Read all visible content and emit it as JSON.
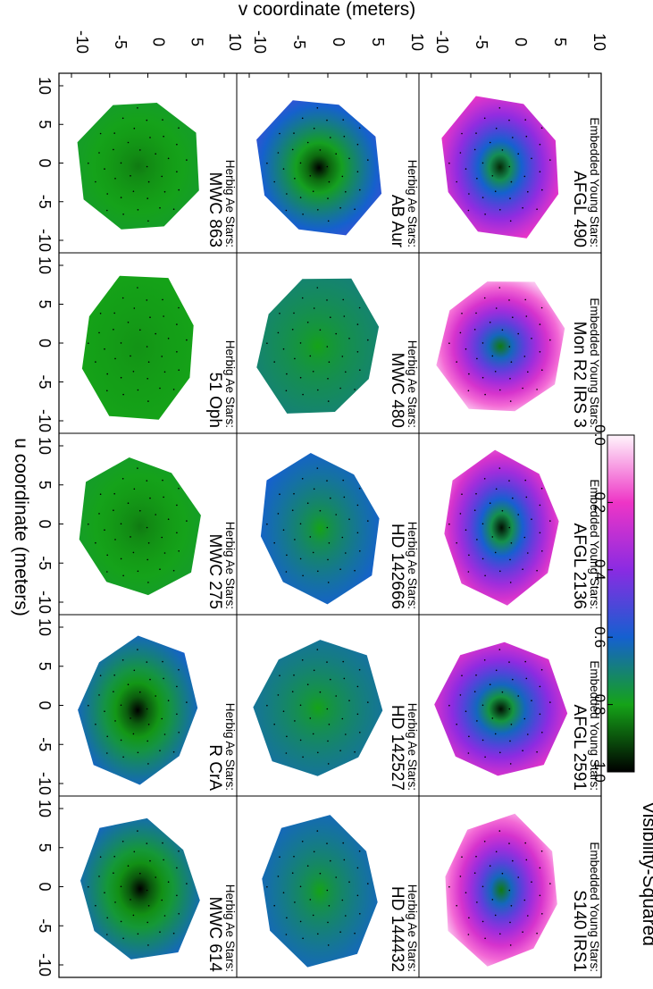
{
  "chart_data": {
    "type": "heatmap",
    "layout_note": "figure is rotated 90 degrees clockwise on the page",
    "colorbar": {
      "title": "Visibility-Squared",
      "range": [
        0.0,
        1.0
      ],
      "ticks": [
        "0.0",
        "0.2",
        "0.4",
        "0.6",
        "0.8",
        "1.0"
      ],
      "colormap": [
        {
          "v": 0.0,
          "color": "#fff5fc"
        },
        {
          "v": 0.2,
          "color": "#ee35c6"
        },
        {
          "v": 0.4,
          "color": "#8a2be2"
        },
        {
          "v": 0.6,
          "color": "#1560d0"
        },
        {
          "v": 0.8,
          "color": "#15a318"
        },
        {
          "v": 1.0,
          "color": "#000000"
        }
      ]
    },
    "axes": {
      "xlabel": "u coordinate (meters)",
      "ylabel": "v coordinate (meters)",
      "xlim": [
        -12,
        12
      ],
      "ylim": [
        -12,
        12
      ],
      "u_tick_labels": [
        "10",
        "5",
        "0",
        "-5",
        "-10"
      ],
      "v_tick_labels": [
        "-10",
        "-5",
        "0",
        "5",
        "10"
      ]
    },
    "panels": [
      {
        "group": "Embedded Young Stars:",
        "name": "AFGL 490",
        "center_v2": 0.95,
        "edge_v2": 0.2
      },
      {
        "group": "Embedded Young Stars:",
        "name": "Mon R2 IRS 3",
        "center_v2": 0.85,
        "edge_v2": 0.05
      },
      {
        "group": "Embedded Young Stars:",
        "name": "AFGL 2136",
        "center_v2": 0.98,
        "edge_v2": 0.15
      },
      {
        "group": "Embedded Young Stars:",
        "name": "AFGL 2591",
        "center_v2": 0.98,
        "edge_v2": 0.2
      },
      {
        "group": "Embedded Young Stars:",
        "name": "S140 IRS1",
        "center_v2": 0.85,
        "edge_v2": 0.05
      },
      {
        "group": "Herbig Ae Stars:",
        "name": "AB Aur",
        "center_v2": 1.0,
        "edge_v2": 0.55
      },
      {
        "group": "Herbig Ae Stars:",
        "name": "MWC 480",
        "center_v2": 0.8,
        "edge_v2": 0.7
      },
      {
        "group": "Herbig Ae Stars:",
        "name": "HD 142666",
        "center_v2": 0.8,
        "edge_v2": 0.6
      },
      {
        "group": "Herbig Ae Stars:",
        "name": "HD 142527",
        "center_v2": 0.8,
        "edge_v2": 0.65
      },
      {
        "group": "Herbig Ae Stars:",
        "name": "HD 144432",
        "center_v2": 0.8,
        "edge_v2": 0.62
      },
      {
        "group": "Herbig Ae Stars:",
        "name": "MWC 863",
        "center_v2": 0.85,
        "edge_v2": 0.78
      },
      {
        "group": "Herbig Ae Stars:",
        "name": "51 Oph",
        "center_v2": 0.82,
        "edge_v2": 0.8
      },
      {
        "group": "Herbig Ae Stars:",
        "name": "MWC 275",
        "center_v2": 0.85,
        "edge_v2": 0.78
      },
      {
        "group": "Herbig Ae Stars:",
        "name": "R CrA",
        "center_v2": 1.0,
        "edge_v2": 0.6
      },
      {
        "group": "Herbig Ae Stars:",
        "name": "MWC 614",
        "center_v2": 1.0,
        "edge_v2": 0.62
      }
    ]
  }
}
